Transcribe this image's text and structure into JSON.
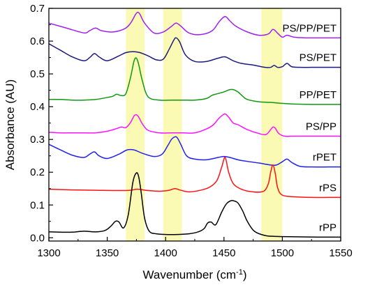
{
  "chart_data": {
    "type": "line",
    "title": "",
    "xlabel_main": "Wavenumber (cm",
    "xlabel_sup": "-1",
    "xlabel_close": ")",
    "ylabel": "Absorbance (AU)",
    "xlim": [
      1300,
      1550
    ],
    "ylim": [
      -0.01,
      0.7
    ],
    "x_ticks": [
      1300,
      1350,
      1400,
      1450,
      1500,
      1550
    ],
    "y_ticks": [
      0.0,
      0.1,
      0.2,
      0.3,
      0.4,
      0.5,
      0.6,
      0.7
    ],
    "y_tick_labels": [
      "0.0",
      "0.1",
      "0.2",
      "0.3",
      "0.4",
      "0.5",
      "0.6",
      "0.7"
    ],
    "highlight_bands": [
      [
        1366,
        1382
      ],
      [
        1398,
        1414
      ],
      [
        1482,
        1500
      ]
    ],
    "highlight_color": "#fafab4",
    "series": [
      {
        "name": "PS/PP/PET",
        "color": "#a020f0",
        "x": [
          1300,
          1315,
          1330,
          1335,
          1340,
          1345,
          1355,
          1365,
          1370,
          1374,
          1376,
          1378,
          1382,
          1390,
          1398,
          1405,
          1409,
          1413,
          1420,
          1430,
          1440,
          1446,
          1451,
          1455,
          1460,
          1470,
          1480,
          1488,
          1492,
          1496,
          1500,
          1504,
          1510,
          1520,
          1535,
          1550
        ],
        "y": [
          0.655,
          0.64,
          0.625,
          0.632,
          0.64,
          0.632,
          0.628,
          0.638,
          0.655,
          0.68,
          0.688,
          0.682,
          0.655,
          0.625,
          0.628,
          0.645,
          0.655,
          0.646,
          0.625,
          0.62,
          0.632,
          0.66,
          0.675,
          0.662,
          0.646,
          0.628,
          0.618,
          0.622,
          0.636,
          0.624,
          0.612,
          0.618,
          0.612,
          0.61,
          0.61,
          0.61
        ]
      },
      {
        "name": "PS/PET",
        "color": "#1a1a80",
        "x": [
          1300,
          1310,
          1320,
          1330,
          1335,
          1339,
          1343,
          1350,
          1360,
          1366,
          1372,
          1378,
          1385,
          1392,
          1398,
          1403,
          1407,
          1409,
          1412,
          1417,
          1425,
          1435,
          1445,
          1451,
          1458,
          1465,
          1475,
          1485,
          1490,
          1493,
          1496,
          1500,
          1504,
          1508,
          1515,
          1525,
          1540,
          1550
        ],
        "y": [
          0.592,
          0.572,
          0.552,
          0.54,
          0.55,
          0.562,
          0.552,
          0.54,
          0.555,
          0.565,
          0.568,
          0.565,
          0.555,
          0.543,
          0.545,
          0.575,
          0.603,
          0.61,
          0.598,
          0.558,
          0.538,
          0.538,
          0.548,
          0.552,
          0.54,
          0.532,
          0.527,
          0.52,
          0.52,
          0.526,
          0.52,
          0.522,
          0.532,
          0.522,
          0.52,
          0.52,
          0.52,
          0.52
        ]
      },
      {
        "name": "PP/PET",
        "color": "#109810",
        "x": [
          1300,
          1310,
          1320,
          1330,
          1340,
          1350,
          1355,
          1358,
          1362,
          1366,
          1370,
          1373,
          1375,
          1377,
          1380,
          1385,
          1395,
          1405,
          1415,
          1425,
          1435,
          1440,
          1445,
          1450,
          1455,
          1458,
          1462,
          1466,
          1470,
          1480,
          1490,
          1500,
          1510,
          1525,
          1540,
          1550
        ],
        "y": [
          0.422,
          0.422,
          0.42,
          0.42,
          0.422,
          0.428,
          0.432,
          0.438,
          0.434,
          0.44,
          0.49,
          0.54,
          0.548,
          0.528,
          0.48,
          0.43,
          0.42,
          0.42,
          0.42,
          0.42,
          0.425,
          0.435,
          0.44,
          0.445,
          0.452,
          0.452,
          0.445,
          0.432,
          0.422,
          0.415,
          0.413,
          0.41,
          0.408,
          0.407,
          0.407,
          0.407
        ]
      },
      {
        "name": "PS/PP",
        "color": "#ff10ff",
        "x": [
          1300,
          1310,
          1320,
          1330,
          1340,
          1350,
          1358,
          1362,
          1366,
          1370,
          1373,
          1375,
          1377,
          1380,
          1385,
          1395,
          1405,
          1415,
          1425,
          1435,
          1441,
          1445,
          1448,
          1451,
          1454,
          1458,
          1462,
          1470,
          1480,
          1486,
          1490,
          1492,
          1494,
          1497,
          1502,
          1510,
          1525,
          1540,
          1550
        ],
        "y": [
          0.322,
          0.32,
          0.32,
          0.32,
          0.32,
          0.325,
          0.333,
          0.338,
          0.336,
          0.352,
          0.372,
          0.375,
          0.368,
          0.348,
          0.328,
          0.32,
          0.32,
          0.32,
          0.32,
          0.332,
          0.345,
          0.362,
          0.372,
          0.378,
          0.368,
          0.35,
          0.345,
          0.33,
          0.318,
          0.315,
          0.33,
          0.338,
          0.334,
          0.318,
          0.31,
          0.31,
          0.31,
          0.31,
          0.31
        ]
      },
      {
        "name": "rPET",
        "color": "#2020ee",
        "x": [
          1300,
          1310,
          1320,
          1330,
          1335,
          1339,
          1343,
          1350,
          1360,
          1367,
          1373,
          1380,
          1390,
          1397,
          1402,
          1405,
          1408,
          1410,
          1413,
          1418,
          1425,
          1435,
          1445,
          1450,
          1455,
          1462,
          1470,
          1480,
          1490,
          1495,
          1500,
          1504,
          1508,
          1515,
          1525,
          1540,
          1550
        ],
        "y": [
          0.285,
          0.268,
          0.252,
          0.245,
          0.255,
          0.262,
          0.25,
          0.242,
          0.255,
          0.268,
          0.268,
          0.258,
          0.248,
          0.255,
          0.282,
          0.3,
          0.308,
          0.305,
          0.285,
          0.25,
          0.24,
          0.238,
          0.245,
          0.248,
          0.245,
          0.238,
          0.233,
          0.228,
          0.222,
          0.222,
          0.232,
          0.24,
          0.23,
          0.218,
          0.216,
          0.216,
          0.216
        ]
      },
      {
        "name": "rPS",
        "color": "#ff1010",
        "x": [
          1300,
          1320,
          1340,
          1360,
          1370,
          1376,
          1385,
          1395,
          1403,
          1408,
          1413,
          1420,
          1430,
          1438,
          1444,
          1448,
          1451,
          1454,
          1458,
          1465,
          1475,
          1484,
          1488,
          1490,
          1492,
          1494,
          1496,
          1500,
          1510,
          1525,
          1540,
          1550
        ],
        "y": [
          0.148,
          0.146,
          0.145,
          0.144,
          0.145,
          0.148,
          0.144,
          0.142,
          0.145,
          0.15,
          0.145,
          0.14,
          0.145,
          0.155,
          0.175,
          0.215,
          0.245,
          0.2,
          0.165,
          0.148,
          0.14,
          0.142,
          0.165,
          0.2,
          0.222,
          0.195,
          0.152,
          0.13,
          0.125,
          0.123,
          0.123,
          0.123
        ]
      },
      {
        "name": "rPP",
        "color": "#000000",
        "x": [
          1300,
          1310,
          1320,
          1330,
          1340,
          1348,
          1353,
          1357,
          1360,
          1364,
          1368,
          1372,
          1375,
          1377,
          1379,
          1382,
          1386,
          1392,
          1400,
          1410,
          1420,
          1428,
          1433,
          1436,
          1439,
          1443,
          1448,
          1452,
          1456,
          1459,
          1462,
          1466,
          1470,
          1476,
          1485,
          1495,
          1510,
          1530,
          1550
        ],
        "y": [
          0.018,
          0.017,
          0.017,
          0.02,
          0.018,
          0.022,
          0.035,
          0.05,
          0.048,
          0.03,
          0.07,
          0.17,
          0.198,
          0.185,
          0.14,
          0.06,
          0.02,
          0.012,
          0.01,
          0.01,
          0.012,
          0.018,
          0.028,
          0.045,
          0.048,
          0.04,
          0.078,
          0.103,
          0.113,
          0.112,
          0.106,
          0.082,
          0.05,
          0.02,
          0.007,
          0.004,
          0.003,
          0.002,
          0.002
        ]
      }
    ]
  }
}
